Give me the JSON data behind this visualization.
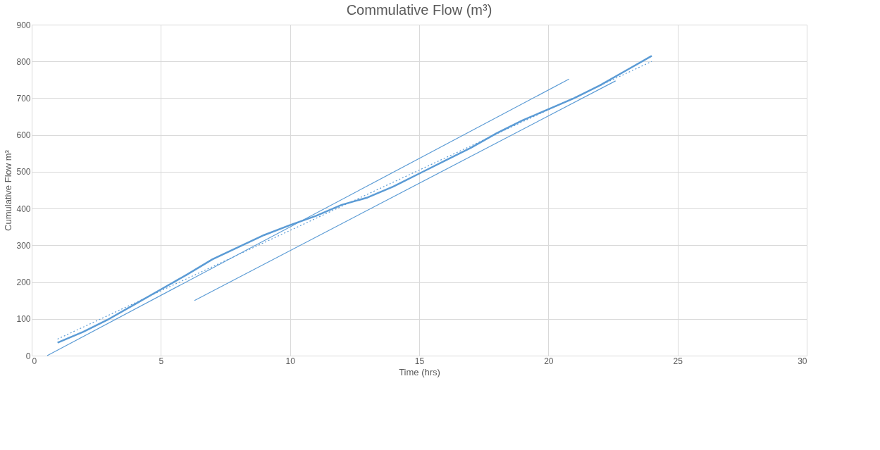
{
  "chart_data": {
    "type": "line",
    "title": "Commulative Flow (m³)",
    "xlabel": "Time (hrs)",
    "ylabel": "Cumulative Flow m³",
    "xlim": [
      0,
      30
    ],
    "xticks": [
      0,
      5,
      10,
      15,
      20,
      25,
      30
    ],
    "ylim": [
      0,
      900
    ],
    "yticks": [
      0,
      100,
      200,
      300,
      400,
      500,
      600,
      700,
      800,
      900
    ],
    "grid": true,
    "marker": "none",
    "series": [
      {
        "color": "#5b9bd5",
        "line_style": "solid",
        "x": [
          1,
          2,
          3,
          4,
          5,
          6,
          7,
          8,
          9,
          10,
          11,
          12,
          13,
          14,
          15,
          16,
          17,
          18,
          19,
          20,
          21,
          22,
          23,
          24
        ],
        "values": [
          35,
          65,
          100,
          140,
          180,
          220,
          262,
          295,
          328,
          355,
          380,
          410,
          430,
          460,
          495,
          530,
          565,
          605,
          640,
          670,
          700,
          735,
          775,
          815
        ]
      },
      {
        "color": "#5b9bd5",
        "line_style": "dotted",
        "x": [
          1,
          24
        ],
        "values": [
          45,
          800
        ]
      },
      {
        "color": "#5b9bd5",
        "line_style": "solid",
        "x": [
          0.6,
          20.8
        ],
        "values": [
          0,
          752
        ]
      },
      {
        "color": "#5b9bd5",
        "line_style": "solid",
        "x": [
          6.3,
          22.6
        ],
        "values": [
          150,
          747
        ]
      }
    ]
  }
}
